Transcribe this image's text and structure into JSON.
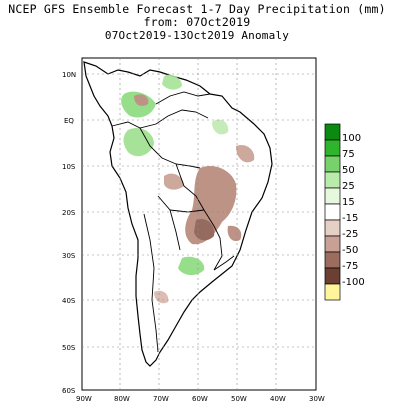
{
  "title": {
    "line1": "NCEP GFS Ensemble Forecast 1-7 Day Precipitation (mm)",
    "line2": "from: 07Oct2019",
    "line3": "07Oct2019-13Oct2019 Anomaly"
  },
  "axes": {
    "lat_labels": [
      "10N",
      "EQ",
      "10S",
      "20S",
      "30S",
      "40S",
      "50S",
      "60S"
    ],
    "lon_labels": [
      "90W",
      "80W",
      "70W",
      "60W",
      "50W",
      "40W",
      "30W"
    ]
  },
  "legend": {
    "labels": [
      "100",
      "75",
      "50",
      "25",
      "15",
      "-15",
      "-25",
      "-50",
      "-75",
      "-100"
    ],
    "colors": [
      "#0a8a10",
      "#2fb52c",
      "#78d26b",
      "#b9ebaa",
      "#e6f8de",
      "#ffffff",
      "#e6cfc5",
      "#c9a194",
      "#9c6d5f",
      "#6b3f33",
      "#fff59a"
    ]
  },
  "colors": {
    "land": "#ffffff",
    "grid": "#8c8c8c",
    "wet": "#8fdc82",
    "dry": "#b88a7c"
  }
}
